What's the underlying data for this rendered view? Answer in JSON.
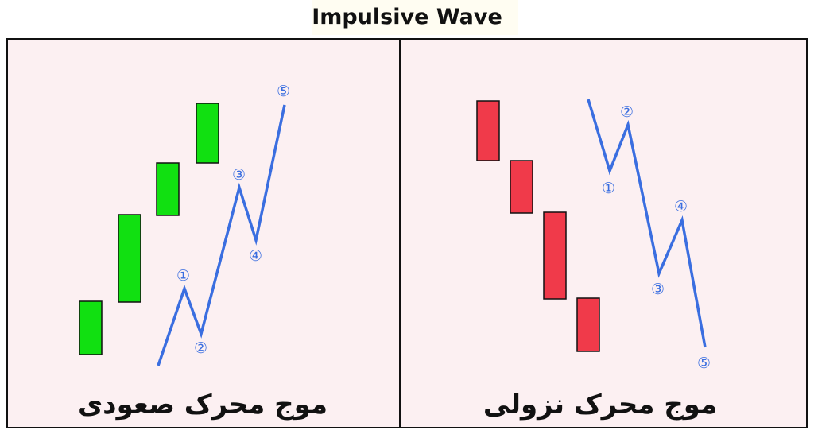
{
  "title": "Impulsive Wave",
  "panels": {
    "bullish": {
      "caption": "موج محرک صعودی",
      "candle_color": "#11e011",
      "wave_color": "#3a6ee0",
      "wave_labels": [
        "①",
        "②",
        "③",
        "④",
        "⑤"
      ]
    },
    "bearish": {
      "caption": "موج محرک نزولی",
      "candle_color": "#f03a4a",
      "wave_color": "#3a6ee0",
      "wave_labels": [
        "①",
        "②",
        "③",
        "④",
        "⑤"
      ]
    }
  }
}
